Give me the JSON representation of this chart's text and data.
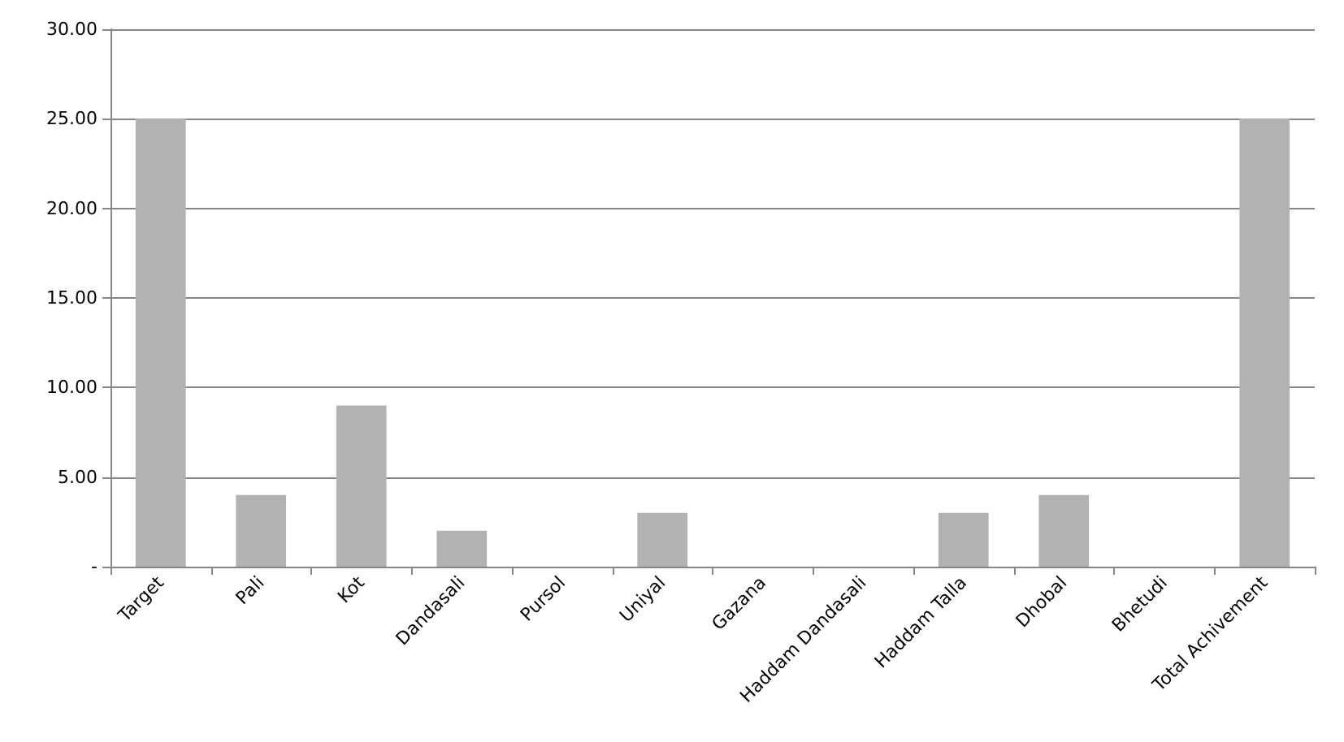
{
  "chart_data": {
    "type": "bar",
    "categories": [
      "Target",
      "Pali",
      "Kot",
      "Dandasali",
      "Pursol",
      "Uniyal",
      "Gazana",
      "Haddam Dandasali",
      "Haddam Talla",
      "Dhobal",
      "Bhetudi",
      "Total Achivement"
    ],
    "values": [
      25,
      4,
      9,
      2,
      0,
      3,
      0,
      0,
      3,
      4,
      0,
      25
    ],
    "color": "#b2b2b2",
    "ylim": [
      0,
      30
    ],
    "yticks": [
      {
        "value": 0,
        "label": "-"
      },
      {
        "value": 5,
        "label": "5.00"
      },
      {
        "value": 10,
        "label": "10.00"
      },
      {
        "value": 15,
        "label": "15.00"
      },
      {
        "value": 20,
        "label": "20.00"
      },
      {
        "value": 25,
        "label": "25.00"
      },
      {
        "value": 30,
        "label": "30.00"
      }
    ],
    "grid": "y"
  }
}
